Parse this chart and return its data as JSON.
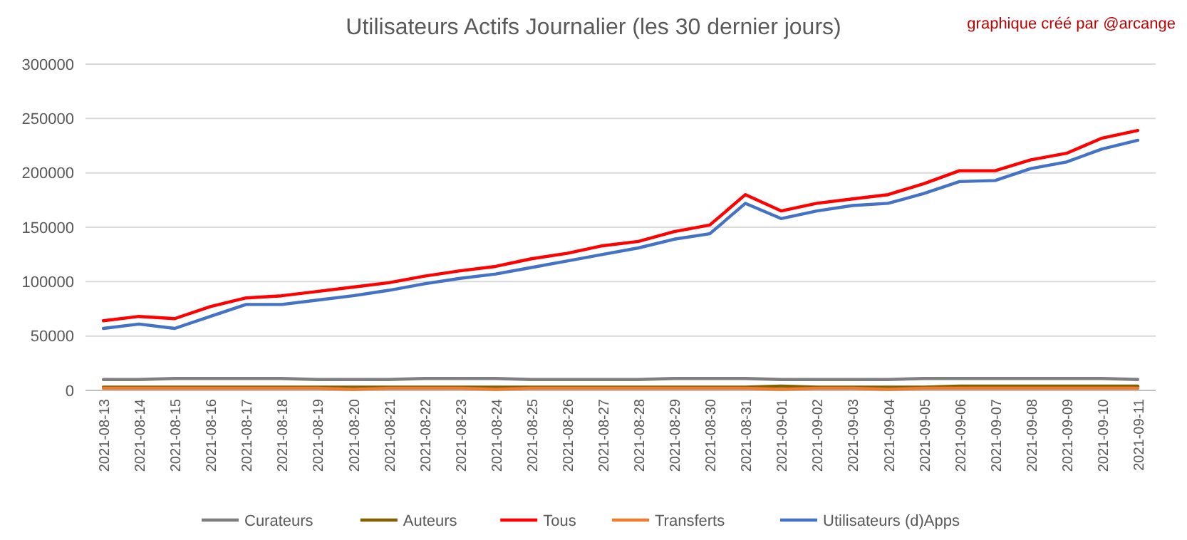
{
  "chart_data": {
    "type": "line",
    "title": "Utilisateurs Actifs Journalier (les 30 dernier jours)",
    "annotations": [
      "graphique créé par @arcange"
    ],
    "categories": [
      "2021-08-13",
      "2021-08-14",
      "2021-08-15",
      "2021-08-16",
      "2021-08-17",
      "2021-08-18",
      "2021-08-19",
      "2021-08-20",
      "2021-08-21",
      "2021-08-22",
      "2021-08-23",
      "2021-08-24",
      "2021-08-25",
      "2021-08-26",
      "2021-08-27",
      "2021-08-28",
      "2021-08-29",
      "2021-08-30",
      "2021-08-31",
      "2021-09-01",
      "2021-09-02",
      "2021-09-03",
      "2021-09-04",
      "2021-09-05",
      "2021-09-06",
      "2021-09-07",
      "2021-09-08",
      "2021-09-09",
      "2021-09-10",
      "2021-09-11"
    ],
    "series": [
      {
        "name": "Curateurs",
        "color": "#7f7f7f",
        "values": [
          10000,
          10000,
          11000,
          11000,
          11000,
          11000,
          10000,
          10000,
          10000,
          11000,
          11000,
          11000,
          10000,
          10000,
          10000,
          10000,
          11000,
          11000,
          11000,
          10000,
          10000,
          10000,
          10000,
          11000,
          11000,
          11000,
          11000,
          11000,
          11000,
          10000
        ]
      },
      {
        "name": "Auteurs",
        "color": "#806000",
        "values": [
          3000,
          3000,
          3000,
          3000,
          3000,
          3000,
          3000,
          3000,
          3000,
          3000,
          3000,
          3000,
          3000,
          3000,
          3000,
          3000,
          3000,
          3000,
          3000,
          4000,
          3000,
          3000,
          3000,
          3000,
          4000,
          4000,
          4000,
          4000,
          4000,
          4000
        ]
      },
      {
        "name": "Tous",
        "color": "#ff0000",
        "values": [
          64000,
          68000,
          66000,
          77000,
          85000,
          87000,
          91000,
          95000,
          99000,
          105000,
          110000,
          114000,
          121000,
          126000,
          133000,
          137000,
          146000,
          152000,
          180000,
          165000,
          172000,
          176000,
          180000,
          190000,
          202000,
          202000,
          212000,
          218000,
          232000,
          239000
        ]
      },
      {
        "name": "Transferts",
        "color": "#ed7d31",
        "values": [
          2000,
          2000,
          2000,
          2000,
          2000,
          2000,
          2000,
          1000,
          2000,
          2000,
          2000,
          1000,
          2000,
          2000,
          2000,
          2000,
          2000,
          2000,
          2000,
          1000,
          2000,
          2000,
          1000,
          2000,
          2000,
          2000,
          2000,
          2000,
          2000,
          2000
        ]
      },
      {
        "name": "Utilisateurs (d)Apps",
        "color": "#4472c4",
        "values": [
          57000,
          61000,
          57000,
          68000,
          79000,
          79000,
          83000,
          87000,
          92000,
          98000,
          103000,
          107000,
          113000,
          119000,
          125000,
          131000,
          139000,
          144000,
          172000,
          158000,
          165000,
          170000,
          172000,
          181000,
          192000,
          193000,
          204000,
          210000,
          222000,
          230000
        ]
      }
    ],
    "ylim": [
      0,
      300000
    ],
    "yticks": [
      0,
      50000,
      100000,
      150000,
      200000,
      250000,
      300000
    ],
    "grid": "y",
    "legend": "bottom",
    "line_style": "solid",
    "marker": "none"
  }
}
